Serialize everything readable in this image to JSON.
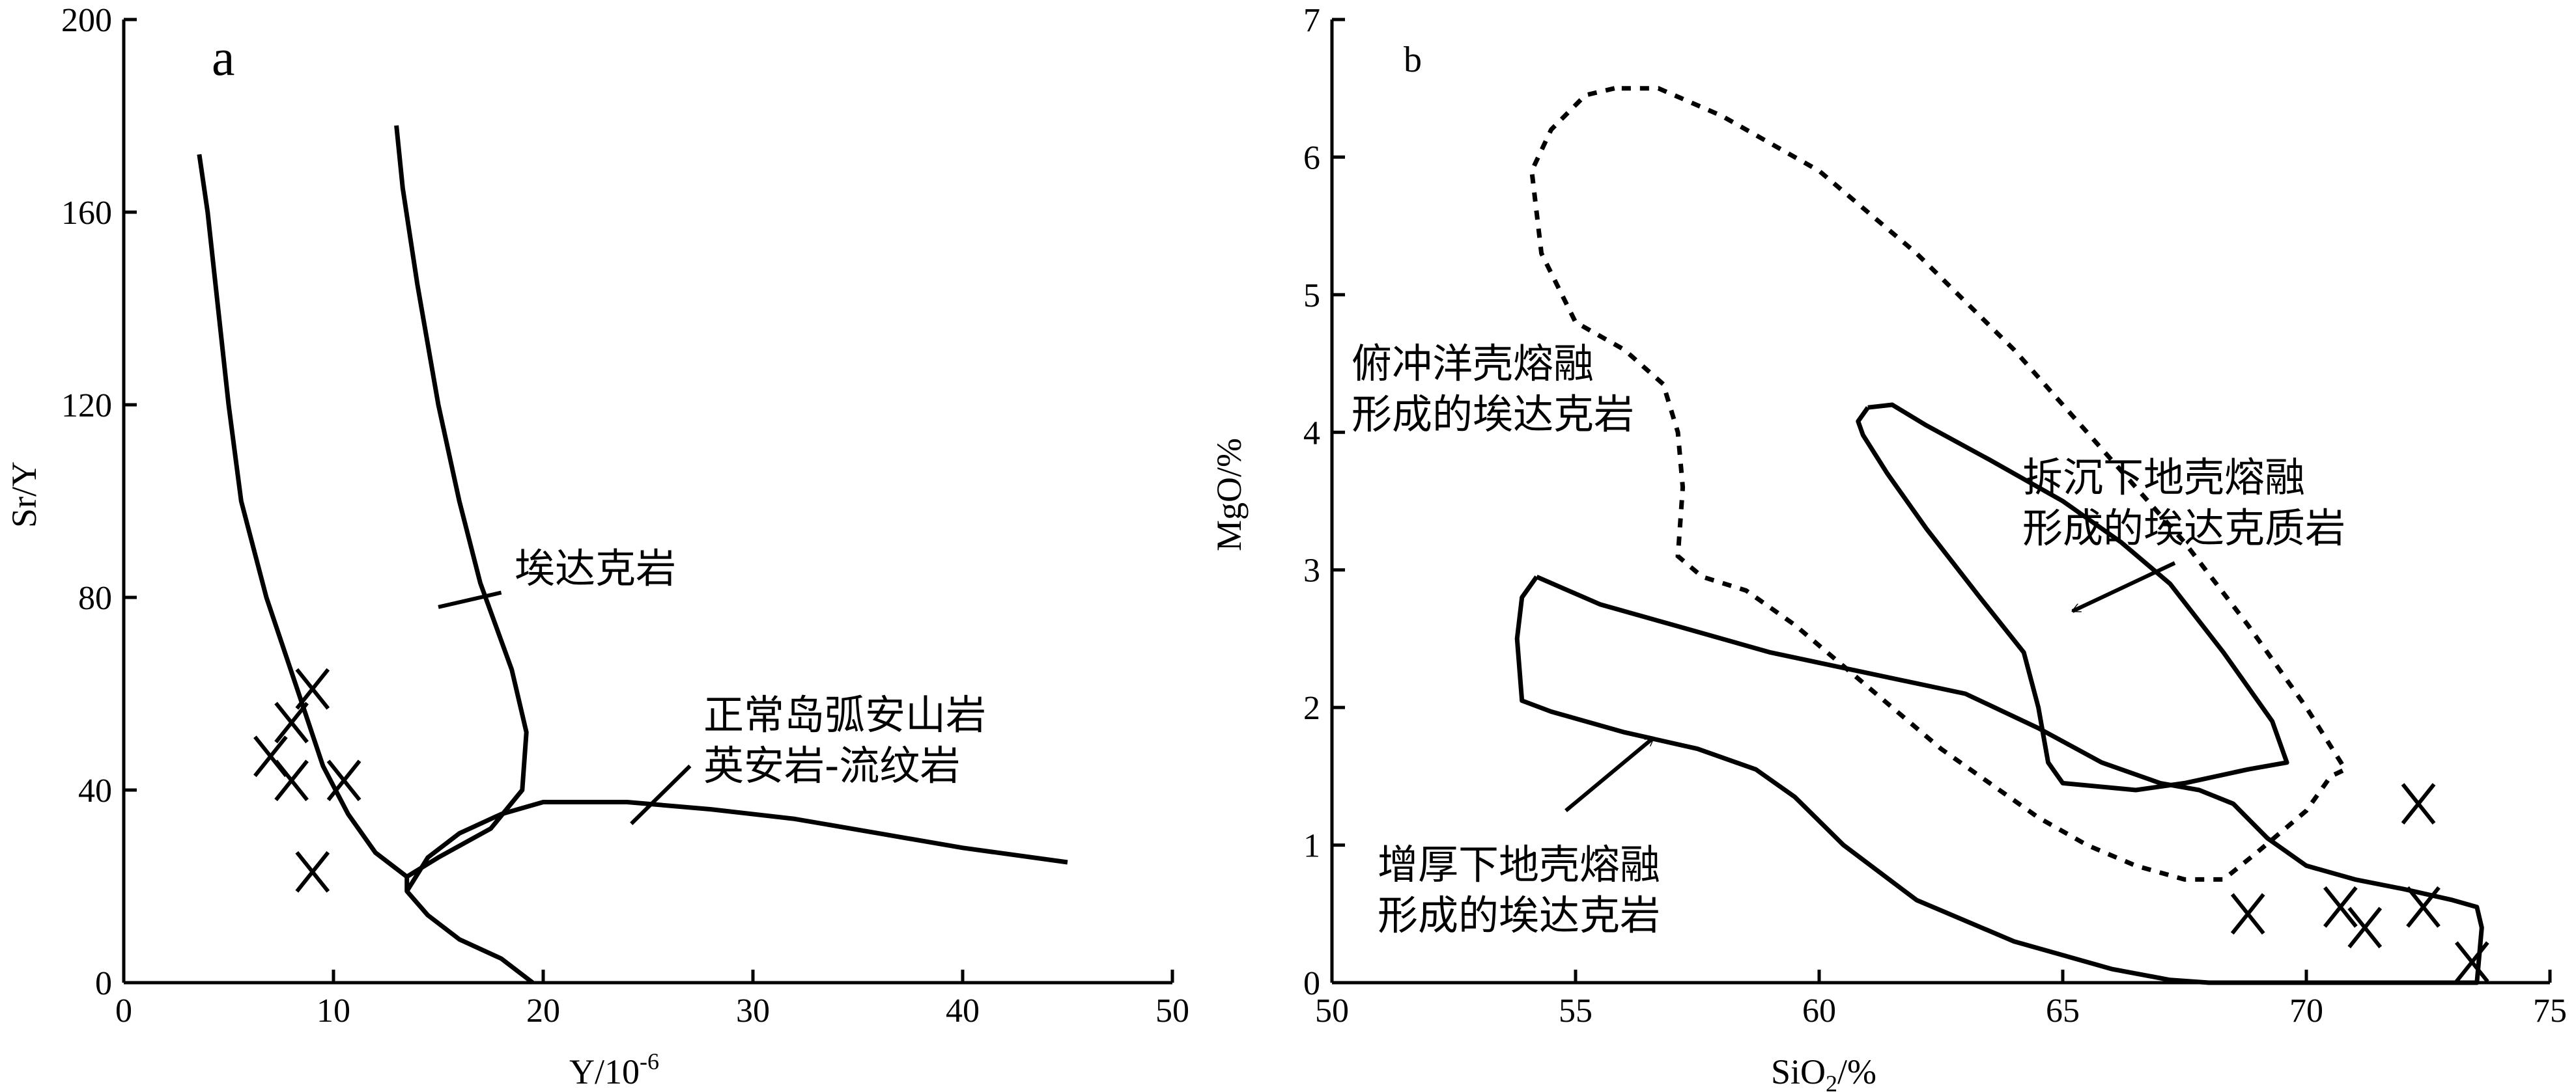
{
  "chart_data": [
    {
      "panel": "a",
      "type": "scatter",
      "xlabel_main": "Y/10",
      "xlabel_sup": "-6",
      "ylabel": "Sr/Y",
      "xlim": [
        0,
        50
      ],
      "ylim": [
        0,
        200
      ],
      "xticks": [
        0,
        10,
        20,
        30,
        40,
        50
      ],
      "yticks": [
        0,
        40,
        80,
        120,
        160,
        200
      ],
      "marker": "x",
      "points": [
        {
          "x": 9,
          "y": 61
        },
        {
          "x": 8,
          "y": 54
        },
        {
          "x": 7,
          "y": 47
        },
        {
          "x": 8,
          "y": 42
        },
        {
          "x": 10.5,
          "y": 42
        },
        {
          "x": 9,
          "y": 23
        }
      ],
      "fields": [
        {
          "label": "埃达克岩",
          "line": [
            [
              3.6,
              172
            ],
            [
              4,
              160
            ],
            [
              4.5,
              140
            ],
            [
              5,
              120
            ],
            [
              5.6,
              100
            ],
            [
              6.8,
              80
            ],
            [
              8.5,
              58
            ],
            [
              9.5,
              45
            ],
            [
              10.7,
              35
            ],
            [
              12,
              27
            ],
            [
              13.5,
              22
            ]
          ]
        },
        {
          "label": "埃达克岩",
          "line": [
            [
              13,
              178
            ],
            [
              13.3,
              165
            ],
            [
              14,
              145
            ],
            [
              15,
              120
            ],
            [
              16,
              100
            ],
            [
              17,
              83
            ],
            [
              18.5,
              65
            ],
            [
              19.2,
              52
            ],
            [
              19,
              40
            ],
            [
              17.5,
              32
            ],
            [
              15,
              26
            ],
            [
              13.5,
              22
            ],
            [
              13.5,
              19
            ],
            [
              14.5,
              14
            ],
            [
              16,
              9
            ],
            [
              18,
              5
            ],
            [
              19.5,
              0
            ]
          ]
        },
        {
          "label": "正常岛弧安山岩 英安岩-流纹岩",
          "line": [
            [
              13.5,
              19
            ],
            [
              14.5,
              26
            ],
            [
              16,
              31
            ],
            [
              18,
              35
            ],
            [
              20,
              37.5
            ],
            [
              24,
              37.5
            ],
            [
              28,
              36
            ],
            [
              32,
              34
            ],
            [
              36,
              31
            ],
            [
              40,
              28
            ],
            [
              45,
              25
            ]
          ]
        }
      ],
      "annotations": [
        {
          "lines": [
            "埃达克岩"
          ],
          "leader_from": [
            15,
            78
          ],
          "leader_to": [
            18,
            81
          ]
        },
        {
          "lines": [
            "正常岛弧安山岩",
            "英安岩-流纹岩"
          ],
          "leader_from": [
            24.2,
            33
          ],
          "leader_to": [
            27,
            45
          ]
        }
      ]
    },
    {
      "panel": "b",
      "type": "scatter",
      "xlabel_main": "SiO",
      "xlabel_sub": "2",
      "xlabel_tail": "/%",
      "ylabel": "MgO/%",
      "xlim": [
        50,
        75
      ],
      "ylim": [
        0,
        7
      ],
      "xticks": [
        50,
        55,
        60,
        65,
        70,
        75
      ],
      "yticks": [
        0,
        1,
        2,
        3,
        4,
        5,
        6,
        7
      ],
      "marker": "x",
      "points": [
        {
          "x": 72.3,
          "y": 1.3
        },
        {
          "x": 68.8,
          "y": 0.5
        },
        {
          "x": 70.7,
          "y": 0.55
        },
        {
          "x": 71.2,
          "y": 0.4
        },
        {
          "x": 72.4,
          "y": 0.55
        },
        {
          "x": 73.4,
          "y": 0.15
        }
      ],
      "fields": [
        {
          "label": "俯冲洋壳熔融 形成的埃达克岩",
          "style": "dotted",
          "line": [
            [
              55.8,
              6.5
            ],
            [
              55.2,
              6.45
            ],
            [
              54.5,
              6.2
            ],
            [
              54.1,
              5.9
            ],
            [
              54.3,
              5.3
            ],
            [
              55,
              4.8
            ],
            [
              56,
              4.6
            ],
            [
              56.8,
              4.35
            ],
            [
              57.1,
              4
            ],
            [
              57.2,
              3.6
            ],
            [
              57.1,
              3.1
            ],
            [
              57.6,
              2.95
            ],
            [
              58.5,
              2.85
            ],
            [
              59.5,
              2.6
            ],
            [
              60.5,
              2.3
            ],
            [
              61.5,
              2.0
            ],
            [
              62.5,
              1.7
            ],
            [
              63.5,
              1.45
            ],
            [
              64.5,
              1.2
            ],
            [
              65.5,
              1.0
            ],
            [
              66.5,
              0.85
            ],
            [
              67.5,
              0.75
            ],
            [
              68.3,
              0.75
            ],
            [
              69,
              0.95
            ],
            [
              70,
              1.25
            ],
            [
              70.5,
              1.5
            ],
            [
              70.8,
              1.55
            ],
            [
              70,
              2.0
            ],
            [
              68.8,
              2.6
            ],
            [
              67.5,
              3.2
            ],
            [
              66,
              3.8
            ],
            [
              64,
              4.6
            ],
            [
              62,
              5.3
            ],
            [
              60,
              5.9
            ],
            [
              58,
              6.3
            ],
            [
              56.7,
              6.5
            ],
            [
              55.8,
              6.5
            ]
          ]
        },
        {
          "label": "增厚下地壳熔融 形成的埃达克岩",
          "style": "solid",
          "line": [
            [
              54.2,
              2.95
            ],
            [
              55.5,
              2.75
            ],
            [
              57,
              2.6
            ],
            [
              59,
              2.4
            ],
            [
              61,
              2.25
            ],
            [
              63,
              2.1
            ],
            [
              64.5,
              1.85
            ],
            [
              65.8,
              1.6
            ],
            [
              67,
              1.45
            ],
            [
              67.8,
              1.4
            ],
            [
              68.5,
              1.3
            ],
            [
              69.2,
              1.05
            ],
            [
              70,
              0.85
            ],
            [
              71,
              0.75
            ],
            [
              72,
              0.68
            ],
            [
              73,
              0.6
            ],
            [
              73.5,
              0.55
            ],
            [
              73.6,
              0.4
            ],
            [
              73.5,
              0
            ],
            [
              68,
              0
            ],
            [
              67.2,
              0.02
            ],
            [
              66,
              0.1
            ],
            [
              64,
              0.3
            ],
            [
              62,
              0.6
            ],
            [
              60.5,
              1.0
            ],
            [
              59.5,
              1.35
            ],
            [
              58.7,
              1.55
            ],
            [
              57.5,
              1.7
            ],
            [
              56,
              1.82
            ],
            [
              54.5,
              1.97
            ],
            [
              53.9,
              2.05
            ],
            [
              53.8,
              2.5
            ],
            [
              53.9,
              2.8
            ],
            [
              54.2,
              2.95
            ]
          ]
        },
        {
          "label": "拆沉下地壳熔融 形成的埃达克质岩",
          "style": "solid",
          "line": [
            [
              61,
              4.18
            ],
            [
              60.8,
              4.08
            ],
            [
              60.9,
              3.98
            ],
            [
              61.4,
              3.7
            ],
            [
              62.2,
              3.3
            ],
            [
              63.3,
              2.8
            ],
            [
              64.2,
              2.4
            ],
            [
              64.5,
              2.0
            ],
            [
              64.7,
              1.6
            ],
            [
              65,
              1.45
            ],
            [
              66.5,
              1.4
            ],
            [
              67.5,
              1.45
            ],
            [
              68.8,
              1.55
            ],
            [
              69.6,
              1.6
            ],
            [
              69.3,
              1.9
            ],
            [
              68.3,
              2.4
            ],
            [
              67.2,
              2.9
            ],
            [
              66.2,
              3.2
            ],
            [
              65,
              3.5
            ],
            [
              63.5,
              3.8
            ],
            [
              62.2,
              4.05
            ],
            [
              61.5,
              4.2
            ],
            [
              61,
              4.18
            ]
          ]
        }
      ],
      "annotations": [
        {
          "lines": [
            "俯冲洋壳熔融",
            "形成的埃达克岩"
          ]
        },
        {
          "lines": [
            "拆沉下地壳熔融",
            "形成的埃达克质岩"
          ],
          "arrow_tail": [
            67.3,
            3.05
          ],
          "arrow_head": [
            65.2,
            2.7
          ]
        },
        {
          "lines": [
            "增厚下地壳熔融",
            "形成的埃达克岩"
          ],
          "arrow_tail": [
            54.8,
            1.25
          ],
          "arrow_head": [
            56.6,
            1.78
          ]
        }
      ]
    }
  ]
}
